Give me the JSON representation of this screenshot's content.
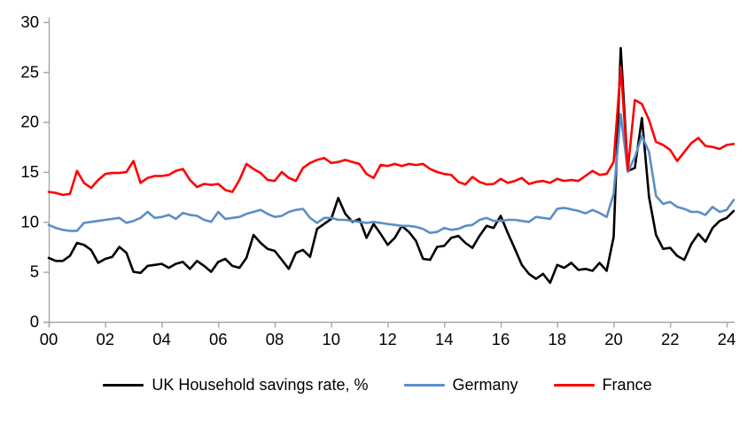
{
  "chart": {
    "background": "#ffffff",
    "axis_color": "#a6a6a6",
    "text_color": "#000000"
  },
  "legend": {
    "items": [
      {
        "label": "UK Household savings rate, %",
        "color": "#000000"
      },
      {
        "label": "Germany",
        "color": "#5b8ec6"
      },
      {
        "label": "France",
        "color": "#ff0000"
      }
    ]
  },
  "chart_data": {
    "type": "line",
    "title": "",
    "xlabel": "",
    "ylabel": "",
    "ylim": [
      0,
      30
    ],
    "y_ticks": [
      0,
      5,
      10,
      15,
      20,
      25,
      30
    ],
    "x_tick_labels": [
      "00",
      "02",
      "04",
      "06",
      "08",
      "10",
      "12",
      "14",
      "16",
      "18",
      "20",
      "22",
      "24"
    ],
    "x_tick_every_n_points": 8,
    "grid": false,
    "legend_position": "bottom",
    "categories": [
      "2000Q1",
      "2000Q2",
      "2000Q3",
      "2000Q4",
      "2001Q1",
      "2001Q2",
      "2001Q3",
      "2001Q4",
      "2002Q1",
      "2002Q2",
      "2002Q3",
      "2002Q4",
      "2003Q1",
      "2003Q2",
      "2003Q3",
      "2003Q4",
      "2004Q1",
      "2004Q2",
      "2004Q3",
      "2004Q4",
      "2005Q1",
      "2005Q2",
      "2005Q3",
      "2005Q4",
      "2006Q1",
      "2006Q2",
      "2006Q3",
      "2006Q4",
      "2007Q1",
      "2007Q2",
      "2007Q3",
      "2007Q4",
      "2008Q1",
      "2008Q2",
      "2008Q3",
      "2008Q4",
      "2009Q1",
      "2009Q2",
      "2009Q3",
      "2009Q4",
      "2010Q1",
      "2010Q2",
      "2010Q3",
      "2010Q4",
      "2011Q1",
      "2011Q2",
      "2011Q3",
      "2011Q4",
      "2012Q1",
      "2012Q2",
      "2012Q3",
      "2012Q4",
      "2013Q1",
      "2013Q2",
      "2013Q3",
      "2013Q4",
      "2014Q1",
      "2014Q2",
      "2014Q3",
      "2014Q4",
      "2015Q1",
      "2015Q2",
      "2015Q3",
      "2015Q4",
      "2016Q1",
      "2016Q2",
      "2016Q3",
      "2016Q4",
      "2017Q1",
      "2017Q2",
      "2017Q3",
      "2017Q4",
      "2018Q1",
      "2018Q2",
      "2018Q3",
      "2018Q4",
      "2019Q1",
      "2019Q2",
      "2019Q3",
      "2019Q4",
      "2020Q1",
      "2020Q2",
      "2020Q3",
      "2020Q4",
      "2021Q1",
      "2021Q2",
      "2021Q3",
      "2021Q4",
      "2022Q1",
      "2022Q2",
      "2022Q3",
      "2022Q4",
      "2023Q1",
      "2023Q2",
      "2023Q3",
      "2023Q4",
      "2024Q1",
      "2024Q2"
    ],
    "series": [
      {
        "name": "UK Household savings rate, %",
        "color": "#000000",
        "values": [
          6.4,
          6.1,
          6.1,
          6.6,
          7.9,
          7.7,
          7.2,
          5.9,
          6.3,
          6.5,
          7.5,
          6.9,
          5.0,
          4.9,
          5.6,
          5.7,
          5.8,
          5.4,
          5.8,
          6.0,
          5.3,
          6.1,
          5.6,
          5.0,
          6.0,
          6.3,
          5.6,
          5.4,
          6.4,
          8.7,
          7.9,
          7.3,
          7.1,
          6.2,
          5.3,
          6.9,
          7.2,
          6.5,
          9.3,
          9.8,
          10.3,
          12.4,
          10.8,
          10.0,
          10.3,
          8.4,
          9.8,
          8.8,
          7.7,
          8.4,
          9.6,
          9.0,
          8.1,
          6.3,
          6.2,
          7.5,
          7.6,
          8.4,
          8.6,
          7.9,
          7.4,
          8.6,
          9.6,
          9.4,
          10.6,
          8.9,
          7.3,
          5.7,
          4.8,
          4.3,
          4.8,
          3.9,
          5.7,
          5.4,
          5.9,
          5.2,
          5.3,
          5.1,
          5.9,
          5.1,
          8.5,
          27.4,
          15.1,
          15.4,
          20.4,
          12.5,
          8.7,
          7.3,
          7.4,
          6.6,
          6.2,
          7.8,
          8.8,
          8.0,
          9.4,
          10.1,
          10.4,
          11.1
        ]
      },
      {
        "name": "Germany",
        "color": "#5b8ec6",
        "values": [
          9.7,
          9.4,
          9.2,
          9.1,
          9.1,
          9.9,
          10.0,
          10.1,
          10.2,
          10.3,
          10.4,
          9.9,
          10.1,
          10.4,
          11.0,
          10.4,
          10.5,
          10.7,
          10.3,
          10.9,
          10.7,
          10.6,
          10.2,
          10.0,
          11.0,
          10.3,
          10.4,
          10.5,
          10.8,
          11.0,
          11.2,
          10.8,
          10.5,
          10.6,
          11.0,
          11.2,
          11.3,
          10.4,
          9.9,
          10.4,
          10.4,
          10.2,
          10.2,
          10.1,
          10.0,
          9.9,
          10.0,
          9.9,
          9.8,
          9.7,
          9.6,
          9.6,
          9.5,
          9.3,
          8.9,
          9.0,
          9.4,
          9.2,
          9.3,
          9.6,
          9.7,
          10.2,
          10.4,
          10.1,
          10.1,
          10.2,
          10.2,
          10.1,
          10.0,
          10.5,
          10.4,
          10.3,
          11.3,
          11.4,
          11.25,
          11.1,
          10.85,
          11.2,
          10.9,
          10.5,
          12.8,
          20.8,
          15.0,
          16.5,
          18.6,
          17.0,
          12.6,
          11.8,
          12.0,
          11.5,
          11.3,
          11.0,
          11.0,
          10.7,
          11.5,
          11.0,
          11.2,
          12.2
        ]
      },
      {
        "name": "France",
        "color": "#ff0000",
        "values": [
          13.0,
          12.9,
          12.7,
          12.8,
          15.1,
          13.9,
          13.4,
          14.2,
          14.8,
          14.9,
          14.9,
          15.0,
          16.1,
          13.9,
          14.4,
          14.6,
          14.6,
          14.7,
          15.1,
          15.3,
          14.2,
          13.5,
          13.8,
          13.7,
          13.8,
          13.2,
          13.0,
          14.2,
          15.8,
          15.3,
          14.9,
          14.2,
          14.1,
          15.0,
          14.4,
          14.1,
          15.4,
          15.9,
          16.2,
          16.4,
          15.9,
          16.0,
          16.2,
          16.0,
          15.8,
          14.8,
          14.4,
          15.7,
          15.6,
          15.8,
          15.6,
          15.8,
          15.7,
          15.8,
          15.3,
          15.0,
          14.8,
          14.7,
          14.0,
          13.75,
          14.5,
          14.0,
          13.75,
          13.8,
          14.3,
          13.9,
          14.1,
          14.4,
          13.8,
          14.0,
          14.1,
          13.9,
          14.3,
          14.1,
          14.2,
          14.1,
          14.6,
          15.1,
          14.7,
          14.8,
          16.0,
          25.5,
          15.2,
          22.2,
          21.8,
          20.2,
          18.0,
          17.7,
          17.2,
          16.1,
          17.0,
          17.9,
          18.4,
          17.6,
          17.5,
          17.3,
          17.7,
          17.8
        ]
      }
    ]
  }
}
